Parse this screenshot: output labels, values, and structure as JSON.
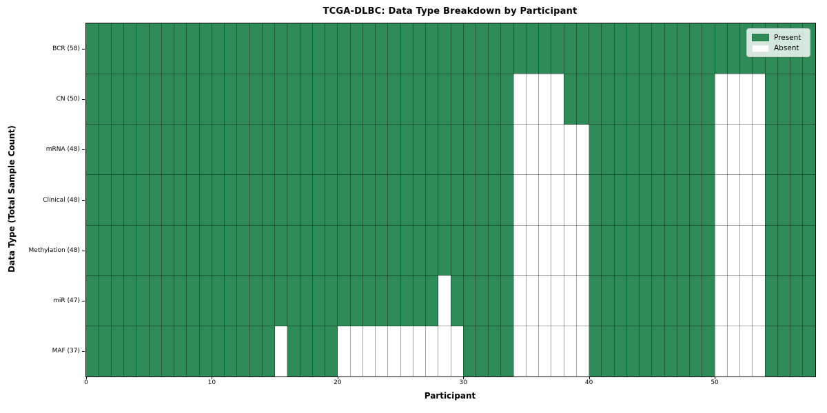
{
  "chart_data": {
    "type": "heatmap",
    "title": "TCGA-DLBC: Data Type Breakdown by Participant",
    "xlabel": "Participant",
    "ylabel": "Data Type (Total Sample Count)",
    "x_min": 0,
    "x_max": 58,
    "n_participants": 58,
    "x_ticks": [
      0,
      10,
      20,
      30,
      40,
      50
    ],
    "grid": true,
    "legend_position": "upper right",
    "colors": {
      "present": "#2E8B57",
      "absent": "#FFFFFF"
    },
    "legend": [
      {
        "label": "Present",
        "color": "#2E8B57"
      },
      {
        "label": "Absent",
        "color": "#FFFFFF"
      }
    ],
    "rows": [
      {
        "label": "BCR (58)",
        "name": "BCR",
        "total": 58,
        "absent_participants": []
      },
      {
        "label": "CN (50)",
        "name": "CN",
        "total": 50,
        "absent_participants": [
          34,
          35,
          36,
          37,
          50,
          51,
          52,
          53
        ]
      },
      {
        "label": "mRNA (48)",
        "name": "mRNA",
        "total": 48,
        "absent_participants": [
          34,
          35,
          36,
          37,
          38,
          39,
          50,
          51,
          52,
          53
        ]
      },
      {
        "label": "Clinical (48)",
        "name": "Clinical",
        "total": 48,
        "absent_participants": [
          34,
          35,
          36,
          37,
          38,
          39,
          50,
          51,
          52,
          53
        ]
      },
      {
        "label": "Methylation (48)",
        "name": "Methylation",
        "total": 48,
        "absent_participants": [
          34,
          35,
          36,
          37,
          38,
          39,
          50,
          51,
          52,
          53
        ]
      },
      {
        "label": "miR (47)",
        "name": "miR",
        "total": 47,
        "absent_participants": [
          28,
          34,
          35,
          36,
          37,
          38,
          39,
          50,
          51,
          52,
          53
        ]
      },
      {
        "label": "MAF (37)",
        "name": "MAF",
        "total": 37,
        "absent_participants": [
          15,
          20,
          21,
          22,
          23,
          24,
          25,
          26,
          27,
          28,
          29,
          34,
          35,
          36,
          37,
          38,
          39,
          50,
          51,
          52,
          53
        ]
      }
    ]
  }
}
